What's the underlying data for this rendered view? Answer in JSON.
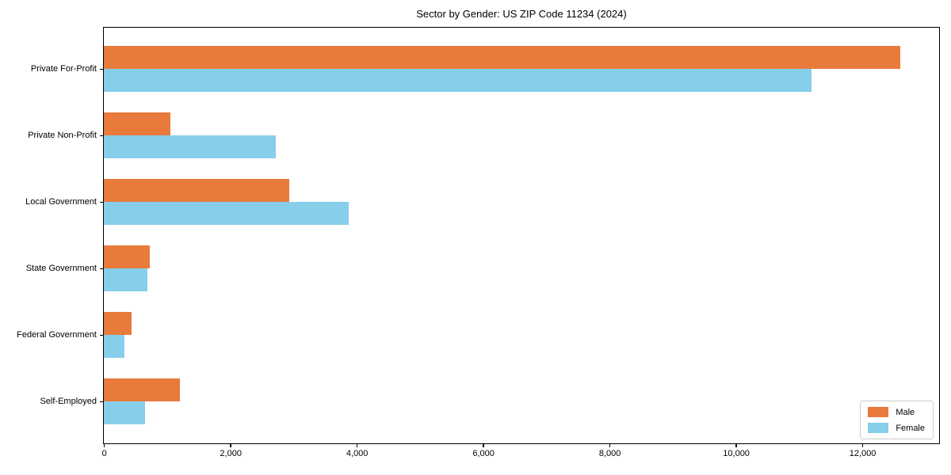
{
  "title": "Sector by Gender: US ZIP Code 11234 (2024)",
  "chart_data": {
    "type": "bar",
    "orientation": "horizontal",
    "title": "Sector by Gender: US ZIP Code 11234 (2024)",
    "categories": [
      "Private For-Profit",
      "Private Non-Profit",
      "Local Government",
      "State Government",
      "Federal Government",
      "Self-Employed"
    ],
    "series": [
      {
        "name": "Male",
        "color": "#e87a3c",
        "values": [
          12600,
          1050,
          2940,
          730,
          440,
          1200
        ]
      },
      {
        "name": "Female",
        "color": "#87ceeb",
        "values": [
          11200,
          2720,
          3870,
          690,
          320,
          650
        ]
      }
    ],
    "xlabel": "",
    "ylabel": "",
    "xlim": [
      0,
      13200
    ],
    "xticks": [
      0,
      2000,
      4000,
      6000,
      8000,
      10000,
      12000
    ],
    "xtick_labels": [
      "0",
      "2,000",
      "4,000",
      "6,000",
      "8,000",
      "10,000",
      "12,000"
    ],
    "grid": false,
    "background": "#ffffff",
    "legend": {
      "position": "lower right",
      "entries": [
        "Male",
        "Female"
      ]
    }
  }
}
